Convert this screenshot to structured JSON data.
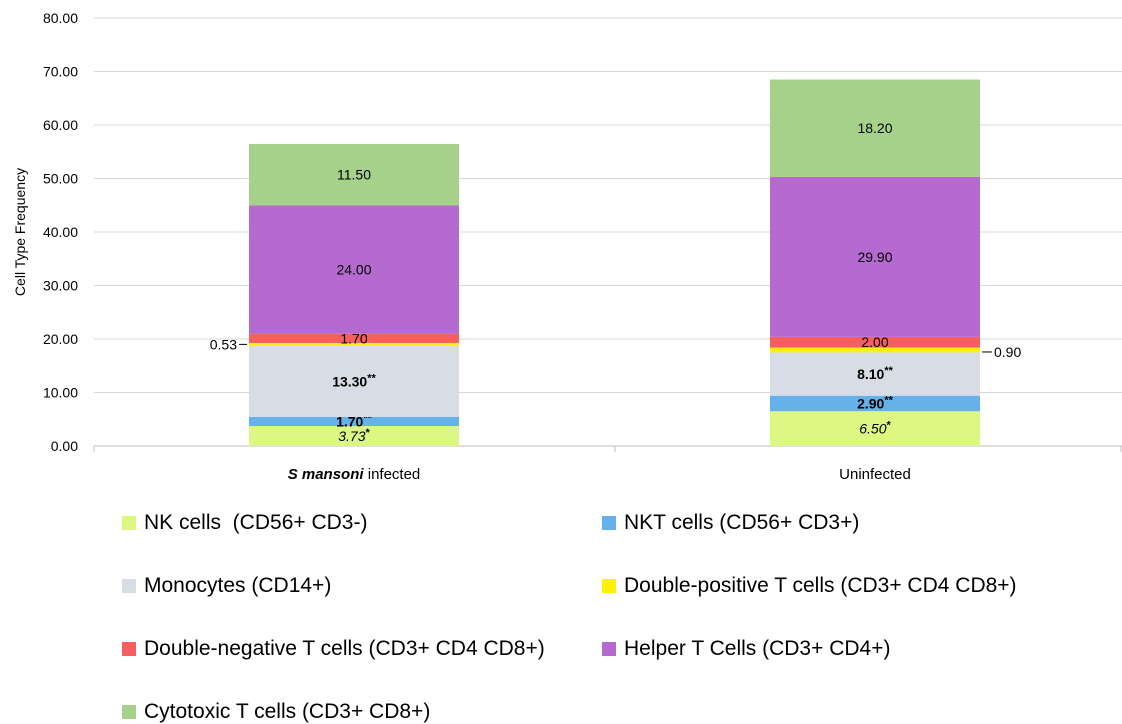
{
  "chart_data": {
    "type": "bar",
    "stacked": true,
    "ylabel": "Cell Type Frequency",
    "ylim": [
      0,
      80
    ],
    "y_ticks": [
      "0.00",
      "10.00",
      "20.00",
      "30.00",
      "40.00",
      "50.00",
      "60.00",
      "70.00",
      "80.00"
    ],
    "grid": "horizontal",
    "legend_position": "bottom",
    "categories": [
      {
        "label_parts": [
          {
            "text": "S mansoni",
            "italic": true
          },
          {
            "text": " infected",
            "italic": false
          }
        ]
      },
      {
        "label_parts": [
          {
            "text": "Uninfected",
            "italic": false
          }
        ]
      }
    ],
    "series": [
      {
        "name": "NK cells  (CD56+ CD3-)",
        "color": "#dcf782",
        "values": [
          3.73,
          6.5
        ],
        "labels": [
          {
            "text": "3.73",
            "sig": "*",
            "italic": true,
            "bold": false
          },
          {
            "text": "6.50",
            "sig": "*",
            "italic": true,
            "bold": false
          }
        ]
      },
      {
        "name": "NKT cells (CD56+ CD3+)",
        "color": "#66b1ea",
        "values": [
          1.7,
          2.9
        ],
        "labels": [
          {
            "text": "1.70",
            "sig": "**",
            "italic": false,
            "bold": true
          },
          {
            "text": "2.90",
            "sig": "**",
            "italic": false,
            "bold": true
          }
        ]
      },
      {
        "name": "Monocytes (CD14+)",
        "color": "#d8dde5",
        "values": [
          13.3,
          8.1
        ],
        "labels": [
          {
            "text": "13.30",
            "sig": "**",
            "italic": false,
            "bold": true
          },
          {
            "text": "8.10",
            "sig": "**",
            "italic": false,
            "bold": true
          }
        ]
      },
      {
        "name": "Double-positive T cells (CD3+ CD4 CD8+)",
        "color": "#fff200",
        "values": [
          0.53,
          0.9
        ],
        "labels": [
          {
            "text": "0.53",
            "side": "left"
          },
          {
            "text": "0.90",
            "side": "right"
          }
        ]
      },
      {
        "name": "Double-negative T cells (CD3+ CD4 CD8+)",
        "color": "#f65e60",
        "values": [
          1.7,
          2.0
        ],
        "labels": [
          {
            "text": "1.70"
          },
          {
            "text": "2.00"
          }
        ]
      },
      {
        "name": "Helper T Cells (CD3+ CD4+)",
        "color": "#b46acf",
        "values": [
          24.0,
          29.9
        ],
        "labels": [
          {
            "text": "24.00"
          },
          {
            "text": "29.90"
          }
        ]
      },
      {
        "name": "Cytotoxic T cells (CD3+ CD8+)",
        "color": "#a6d18b",
        "values": [
          11.5,
          18.2
        ],
        "labels": [
          {
            "text": "11.50"
          },
          {
            "text": "18.20"
          }
        ]
      }
    ]
  }
}
